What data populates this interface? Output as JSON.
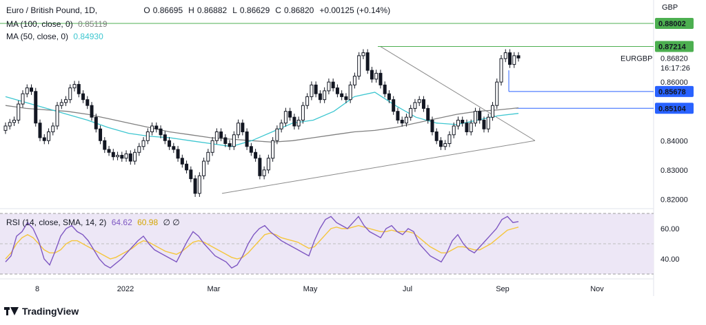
{
  "header": {
    "symbol": "Euro / British Pound, 1D, ",
    "open_label": "O",
    "open": "0.86695",
    "high_label": "H",
    "high": "0.86882",
    "low_label": "L",
    "low": "0.86629",
    "close_label": "C",
    "close": "0.86820",
    "change": "+0.00125 (+0.14%)",
    "ma100_label": "MA (100, close, 0)",
    "ma100_value": "0.85119",
    "ma50_label": "MA (50, close, 0)",
    "ma50_value": "0.84930",
    "rsi_label": "RSI (14, close, SMA, 14, 2)",
    "rsi_value": "64.62",
    "rsi_sma_value": "60.98",
    "rsi_extra": "∅ ∅"
  },
  "price_axis": {
    "currency": "GBP",
    "ticks": [
      "0.86000",
      "0.84000",
      "0.83000",
      "0.82000"
    ],
    "badges": [
      {
        "text": "0.88002",
        "value": 0.88002,
        "color": "#4caf50"
      },
      {
        "text": "0.87214",
        "value": 0.87214,
        "color": "#4caf50"
      },
      {
        "text": "0.85678",
        "value": 0.85678,
        "color": "#2962ff"
      },
      {
        "text": "0.85104",
        "value": 0.85104,
        "color": "#2962ff"
      }
    ],
    "last_symbol": "EURGBP",
    "last_price": "0.86820",
    "countdown": "16:17:26"
  },
  "rsi_axis": {
    "ticks": [
      "60.00",
      "40.00"
    ]
  },
  "time_axis": [
    "8",
    "2022",
    "Mar",
    "May",
    "Jul",
    "Sep",
    "Nov"
  ],
  "brand": "TradingView",
  "colors": {
    "up": "#131722",
    "down": "#131722",
    "ma50": "#3cc6d0",
    "ma100": "#808080",
    "rsi": "#7e57c2",
    "rsi_sma": "#f5c63c",
    "rsi_band": "#ede7f6",
    "green_line": "#4caf50",
    "blue_line": "#2962ff"
  },
  "chart_data": [
    {
      "type": "candlestick",
      "title": "Euro / British Pound, 1D",
      "ylim": [
        0.8175,
        0.888
      ],
      "x_labels": [
        "8",
        "2022",
        "Mar",
        "May",
        "Jul",
        "Sep",
        "Nov"
      ],
      "series": [
        {
          "name": "EURGBP",
          "values": [
            0.845,
            0.8462,
            0.847,
            0.8525,
            0.856,
            0.858,
            0.8568,
            0.846,
            0.841,
            0.84,
            0.843,
            0.845,
            0.852,
            0.853,
            0.854,
            0.858,
            0.8592,
            0.856,
            0.854,
            0.852,
            0.848,
            0.844,
            0.84,
            0.837,
            0.836,
            0.8345,
            0.835,
            0.834,
            0.8355,
            0.833,
            0.836,
            0.838,
            0.84,
            0.843,
            0.845,
            0.844,
            0.842,
            0.84,
            0.838,
            0.837,
            0.834,
            0.832,
            0.83,
            0.827,
            0.822,
            0.828,
            0.833,
            0.836,
            0.84,
            0.843,
            0.841,
            0.839,
            0.838,
            0.842,
            0.846,
            0.843,
            0.838,
            0.836,
            0.834,
            0.828,
            0.83,
            0.834,
            0.84,
            0.844,
            0.846,
            0.85,
            0.848,
            0.845,
            0.847,
            0.852,
            0.855,
            0.859,
            0.856,
            0.854,
            0.857,
            0.86,
            0.858,
            0.856,
            0.855,
            0.854,
            0.859,
            0.862,
            0.869,
            0.87,
            0.864,
            0.861,
            0.863,
            0.859,
            0.856,
            0.854,
            0.85,
            0.847,
            0.846,
            0.848,
            0.851,
            0.853,
            0.854,
            0.851,
            0.847,
            0.843,
            0.84,
            0.838,
            0.839,
            0.842,
            0.845,
            0.847,
            0.846,
            0.843,
            0.846,
            0.85,
            0.847,
            0.844,
            0.848,
            0.852,
            0.86,
            0.868,
            0.87,
            0.866,
            0.869,
            0.8682
          ]
        },
        {
          "name": "MA (100, close, 0)",
          "values": [
            0.852,
            0.851,
            0.8505,
            0.85,
            0.849,
            0.8475,
            0.846,
            0.8445,
            0.843,
            0.842,
            0.841,
            0.8405,
            0.84,
            0.8395,
            0.84,
            0.841,
            0.842,
            0.843,
            0.8435,
            0.8445,
            0.846,
            0.8475,
            0.849,
            0.85,
            0.8505,
            0.8512
          ]
        },
        {
          "name": "MA (50, close, 0)",
          "values": [
            0.855,
            0.853,
            0.851,
            0.849,
            0.847,
            0.8445,
            0.8425,
            0.8415,
            0.841,
            0.84,
            0.839,
            0.838,
            0.84,
            0.843,
            0.846,
            0.847,
            0.85,
            0.855,
            0.8565,
            0.852,
            0.848,
            0.846,
            0.8455,
            0.847,
            0.8485,
            0.8493
          ]
        }
      ],
      "annotations": [
        {
          "type": "horizontal",
          "value": 0.88002,
          "label": "0.88002"
        },
        {
          "type": "horizontal",
          "value": 0.87214,
          "label": "0.87214"
        },
        {
          "type": "horizontal",
          "value": 0.85678,
          "label": "0.85678"
        },
        {
          "type": "horizontal",
          "value": 0.85104,
          "label": "0.85104"
        },
        {
          "type": "trendline",
          "points": [
            [
              0.822,
              0.839
            ]
          ],
          "label": ""
        },
        {
          "type": "trendline",
          "points": [
            [
              0.8721,
              0.84
            ]
          ],
          "label": ""
        }
      ]
    },
    {
      "type": "line",
      "title": "RSI (14, close, SMA, 14, 2)",
      "ylim": [
        30,
        70
      ],
      "series": [
        {
          "name": "RSI",
          "values": [
            38,
            42,
            55,
            58,
            64,
            60,
            52,
            40,
            36,
            45,
            55,
            60,
            62,
            58,
            56,
            52,
            46,
            40,
            36,
            34,
            37,
            40,
            44,
            48,
            52,
            55,
            50,
            46,
            44,
            42,
            40,
            38,
            45,
            52,
            58,
            55,
            50,
            46,
            42,
            40,
            38,
            34,
            36,
            42,
            50,
            56,
            60,
            62,
            58,
            55,
            52,
            50,
            48,
            46,
            44,
            42,
            52,
            60,
            66,
            68,
            64,
            62,
            60,
            64,
            68,
            62,
            58,
            56,
            54,
            60,
            62,
            58,
            56,
            60,
            58,
            50,
            46,
            42,
            40,
            38,
            44,
            52,
            56,
            50,
            46,
            44,
            48,
            52,
            56,
            60,
            66,
            68,
            64,
            64.62
          ]
        },
        {
          "name": "SMA",
          "values": [
            40,
            44,
            50,
            54,
            56,
            54,
            50,
            46,
            44,
            44,
            46,
            50,
            52,
            52,
            50,
            48,
            46,
            44,
            42,
            40,
            41,
            43,
            45,
            47,
            50,
            52,
            51,
            49,
            47,
            45,
            44,
            43,
            45,
            48,
            51,
            52,
            51,
            49,
            47,
            45,
            43,
            41,
            40,
            41,
            44,
            48,
            52,
            56,
            57,
            56,
            54,
            53,
            52,
            51,
            49,
            47,
            48,
            52,
            56,
            60,
            61,
            60,
            60,
            61,
            62,
            61,
            60,
            59,
            58,
            58,
            59,
            58,
            58,
            58,
            57,
            54,
            51,
            48,
            46,
            44,
            44,
            46,
            48,
            48,
            47,
            46,
            46,
            48,
            50,
            53,
            56,
            59,
            60,
            60.98
          ]
        }
      ]
    }
  ]
}
